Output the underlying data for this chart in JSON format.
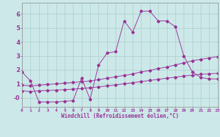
{
  "bg_color": "#cce8e8",
  "line_color": "#993399",
  "grid_color": "#aacccc",
  "xlabel": "Windchill (Refroidissement éolien,°C)",
  "xlim": [
    0,
    23
  ],
  "ylim": [
    -0.65,
    6.8
  ],
  "xticks": [
    0,
    1,
    2,
    3,
    4,
    5,
    6,
    7,
    8,
    9,
    10,
    11,
    12,
    13,
    14,
    15,
    16,
    17,
    18,
    19,
    20,
    21,
    22,
    23
  ],
  "yticks": [
    0,
    1,
    2,
    3,
    4,
    5,
    6
  ],
  "ytick_labels": [
    "-0",
    "1",
    "2",
    "3",
    "4",
    "5",
    "6"
  ],
  "x_peak": [
    0,
    1,
    2,
    3,
    4,
    5,
    6,
    7,
    8,
    9,
    10,
    11,
    12,
    13,
    14,
    15,
    16,
    17,
    18,
    19,
    20,
    21,
    22,
    23
  ],
  "y_peak": [
    1.85,
    1.2,
    -0.3,
    -0.3,
    -0.3,
    -0.25,
    -0.2,
    1.4,
    -0.1,
    2.35,
    3.2,
    3.3,
    5.5,
    4.7,
    6.2,
    6.2,
    5.5,
    5.5,
    5.1,
    3.0,
    1.85,
    1.45,
    1.35,
    1.35
  ],
  "x_mid": [
    0,
    1,
    2,
    3,
    4,
    5,
    6,
    7,
    8,
    9,
    10,
    11,
    12,
    13,
    14,
    15,
    16,
    17,
    18,
    19,
    20,
    21,
    22,
    23
  ],
  "y_mid": [
    0.9,
    0.85,
    0.9,
    0.95,
    1.0,
    1.05,
    1.1,
    1.15,
    1.2,
    1.3,
    1.4,
    1.5,
    1.6,
    1.7,
    1.85,
    1.95,
    2.1,
    2.2,
    2.35,
    2.5,
    2.65,
    2.75,
    2.85,
    2.95
  ],
  "x_low": [
    0,
    1,
    2,
    3,
    4,
    5,
    6,
    7,
    8,
    9,
    10,
    11,
    12,
    13,
    14,
    15,
    16,
    17,
    18,
    19,
    20,
    21,
    22,
    23
  ],
  "y_low": [
    0.5,
    0.45,
    0.5,
    0.52,
    0.55,
    0.58,
    0.62,
    0.66,
    0.72,
    0.78,
    0.85,
    0.92,
    1.0,
    1.08,
    1.16,
    1.24,
    1.32,
    1.4,
    1.48,
    1.55,
    1.62,
    1.68,
    1.72,
    1.75
  ]
}
